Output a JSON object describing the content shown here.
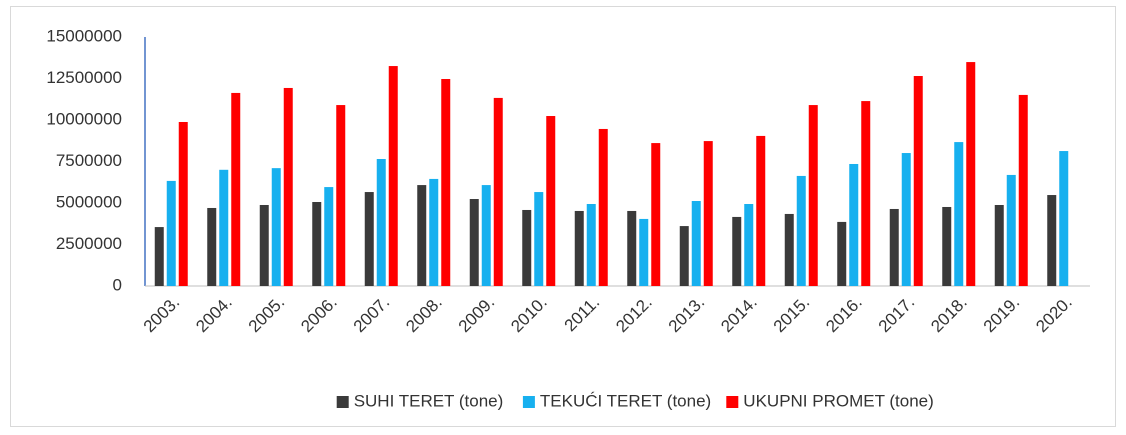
{
  "chart_data": {
    "type": "bar",
    "categories": [
      "2003.",
      "2004.",
      "2005.",
      "2006.",
      "2007.",
      "2008.",
      "2009.",
      "2010.",
      "2011.",
      "2012.",
      "2013.",
      "2014.",
      "2015.",
      "2016.",
      "2017.",
      "2018.",
      "2019.",
      "2020."
    ],
    "series": [
      {
        "name": "SUHI TERET (tone)",
        "color": "#3a3a3a",
        "values": [
          3550000,
          4700000,
          4880000,
          5060000,
          5660000,
          6080000,
          5240000,
          4580000,
          4520000,
          4520000,
          3610000,
          4160000,
          4340000,
          3860000,
          4640000,
          4760000,
          4880000,
          5480000
        ]
      },
      {
        "name": "TEKUĆI TERET (tone)",
        "color": "#17b0ef",
        "values": [
          6330000,
          7000000,
          7100000,
          5960000,
          7650000,
          6450000,
          6080000,
          5660000,
          4940000,
          4040000,
          5120000,
          4940000,
          6630000,
          7350000,
          8010000,
          8670000,
          6690000,
          8130000
        ]
      },
      {
        "name": "UKUPNI PROMET (tone)",
        "color": "#ff0000",
        "values": [
          9880000,
          11630000,
          11930000,
          10900000,
          13250000,
          12470000,
          11330000,
          10240000,
          9460000,
          8610000,
          8730000,
          9040000,
          10900000,
          11140000,
          12650000,
          13490000,
          11510000,
          null
        ]
      }
    ],
    "ylim": [
      0,
      15000000
    ],
    "yticks": [
      0,
      2500000,
      5000000,
      7500000,
      10000000,
      12500000,
      15000000
    ],
    "grid": false,
    "legend": "bottom"
  }
}
